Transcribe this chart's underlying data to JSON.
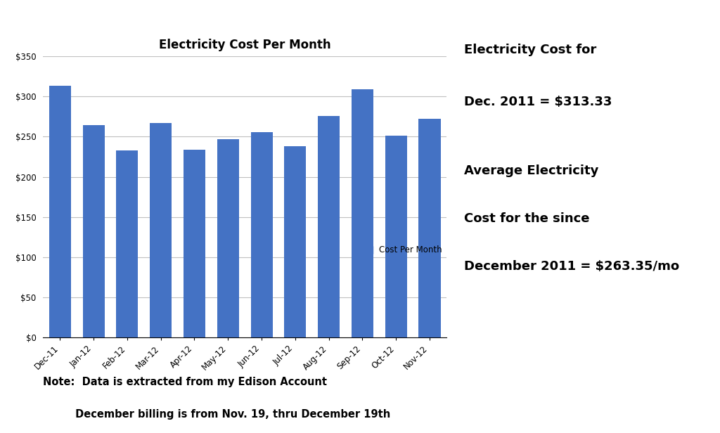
{
  "title": "Electricity Cost Per Month",
  "categories": [
    "Dec-11",
    "Jan-12",
    "Feb-12",
    "Mar-12",
    "Apr-12",
    "May-12",
    "Jun-12",
    "Jul-12",
    "Aug-12",
    "Sep-12",
    "Oct-12",
    "Nov-12"
  ],
  "values": [
    313.33,
    264.0,
    233.0,
    267.0,
    234.0,
    247.0,
    256.0,
    238.0,
    276.0,
    309.0,
    251.0,
    272.0
  ],
  "bar_color": "#4472C4",
  "ylim": [
    0,
    350
  ],
  "yticks": [
    0,
    50,
    100,
    150,
    200,
    250,
    300,
    350
  ],
  "legend_label": "Cost Per Month",
  "annotation1_line1": "Electricity Cost for",
  "annotation1_line2": "Dec. 2011 = $313.33",
  "annotation2_line1": "Average Electricity",
  "annotation2_line2": "Cost for the since",
  "annotation2_line3": "December 2011 = $263.35/mo",
  "note_line1": "Note:  Data is extracted from my Edison Account",
  "note_line2": "         December billing is from Nov. 19, thru December 19th",
  "background_color": "#ffffff",
  "grid_color": "#c0c0c0"
}
